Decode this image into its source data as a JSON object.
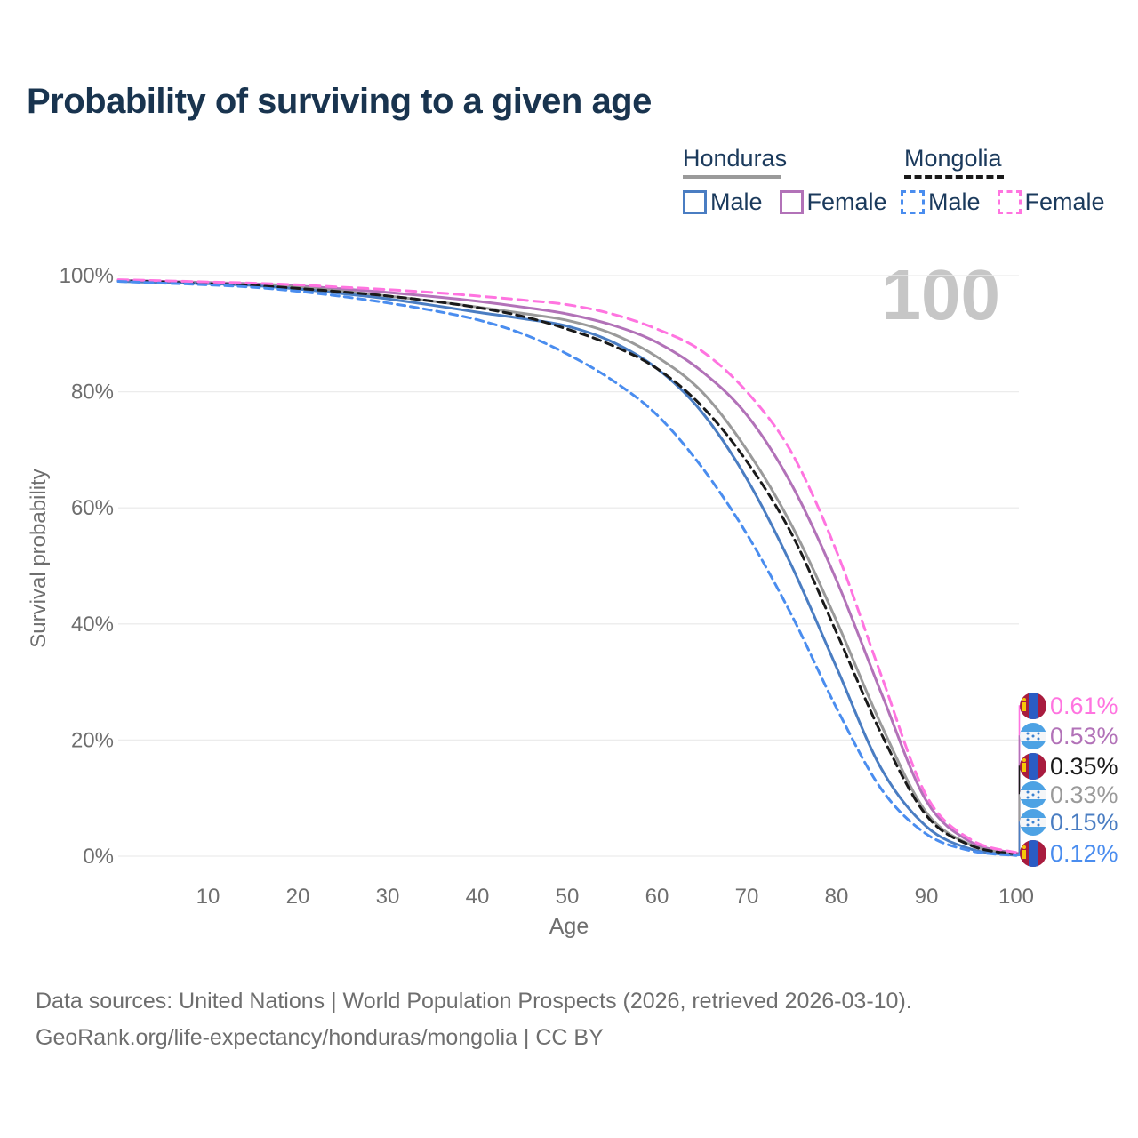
{
  "title": "Probability of surviving to a given age",
  "watermark_age": "100",
  "legend": {
    "groups": [
      {
        "country": "Honduras",
        "items": [
          {
            "label": "Male"
          },
          {
            "label": "Female"
          }
        ]
      },
      {
        "country": "Mongolia",
        "items": [
          {
            "label": "Male"
          },
          {
            "label": "Female"
          }
        ]
      }
    ]
  },
  "colors": {
    "honduras_male": "#4a7dc2",
    "honduras_female": "#b272b8",
    "honduras_both": "#9a9a9a",
    "mongolia_male": "#4a8def",
    "mongolia_female": "#ff74e0",
    "mongolia_both": "#1a1a1a",
    "title_text": "#19344f",
    "axis_text": "#6e6e6e",
    "grid": "#ececec",
    "watermark": "#c6c6c6",
    "flag_honduras_blue": "#4da2e4",
    "flag_mongolia_red": "#a81c3f",
    "flag_mongolia_blue": "#2a5cc4",
    "flag_mongolia_yellow": "#f7c808"
  },
  "chart_data": {
    "type": "line",
    "title": "Probability of surviving to a given age",
    "xlabel": "Age",
    "ylabel": "Survival probability",
    "xlim": [
      0,
      100
    ],
    "ylim": [
      0,
      100
    ],
    "grid": "horizontal",
    "legend_position": "top-right",
    "x_ticks": [
      10,
      20,
      30,
      40,
      50,
      60,
      70,
      80,
      90,
      100
    ],
    "y_ticks": [
      0,
      20,
      40,
      60,
      80,
      100
    ],
    "y_tick_labels": [
      "0%",
      "20%",
      "40%",
      "60%",
      "80%",
      "100%"
    ],
    "x": [
      0,
      5,
      10,
      15,
      20,
      25,
      30,
      35,
      40,
      45,
      50,
      55,
      60,
      65,
      70,
      75,
      80,
      85,
      90,
      95,
      100
    ],
    "series": [
      {
        "name": "Honduras Female",
        "country": "Honduras",
        "sex": "Female",
        "color": "#b272b8",
        "dash": false,
        "end_label": "0.53%",
        "end_value": 0.53,
        "flag": "honduras",
        "values": [
          99.2,
          99.0,
          98.8,
          98.6,
          98.2,
          97.7,
          97.1,
          96.4,
          95.6,
          94.6,
          93.4,
          91.5,
          88.5,
          83.5,
          76.0,
          64.0,
          47.5,
          28.0,
          9.5,
          2.4,
          0.53
        ]
      },
      {
        "name": "Honduras Both sexes",
        "country": "Honduras",
        "sex": "Both",
        "color": "#9a9a9a",
        "dash": false,
        "end_label": "0.33%",
        "end_value": 0.33,
        "flag": "honduras",
        "values": [
          99.1,
          98.9,
          98.7,
          98.4,
          98.0,
          97.3,
          96.5,
          95.6,
          94.6,
          93.5,
          92.3,
          90.0,
          86.0,
          80.0,
          70.0,
          57.0,
          40.5,
          22.5,
          7.5,
          1.9,
          0.33
        ]
      },
      {
        "name": "Honduras Male",
        "country": "Honduras",
        "sex": "Male",
        "color": "#4a7dc2",
        "dash": false,
        "end_label": "0.15%",
        "end_value": 0.15,
        "flag": "honduras",
        "values": [
          99.0,
          98.8,
          98.6,
          98.3,
          97.7,
          96.9,
          96.0,
          94.9,
          93.7,
          92.6,
          91.3,
          88.6,
          84.0,
          76.5,
          65.0,
          50.0,
          32.5,
          15.0,
          5.1,
          1.2,
          0.15
        ]
      },
      {
        "name": "Mongolia Both sexes",
        "country": "Mongolia",
        "sex": "Both",
        "color": "#1a1a1a",
        "dash": true,
        "end_label": "0.35%",
        "end_value": 0.35,
        "flag": "mongolia",
        "values": [
          99.1,
          98.9,
          98.6,
          98.3,
          97.8,
          97.2,
          96.5,
          95.6,
          94.5,
          93.0,
          90.8,
          88.0,
          84.0,
          77.5,
          68.0,
          55.5,
          38.5,
          21.0,
          7.0,
          1.8,
          0.35
        ]
      },
      {
        "name": "Mongolia Female",
        "country": "Mongolia",
        "sex": "Female",
        "color": "#ff74e0",
        "dash": true,
        "end_label": "0.61%",
        "end_value": 0.61,
        "flag": "mongolia",
        "values": [
          99.3,
          99.1,
          98.9,
          98.7,
          98.4,
          98.0,
          97.6,
          97.1,
          96.5,
          95.8,
          95.0,
          93.4,
          90.8,
          87.0,
          80.0,
          69.5,
          52.5,
          31.0,
          10.4,
          2.8,
          0.61
        ]
      },
      {
        "name": "Mongolia Male",
        "country": "Mongolia",
        "sex": "Male",
        "color": "#4a8def",
        "dash": true,
        "end_label": "0.12%",
        "end_value": 0.12,
        "flag": "mongolia",
        "values": [
          99.0,
          98.7,
          98.4,
          98.0,
          97.3,
          96.4,
          95.3,
          94.0,
          92.4,
          90.0,
          86.5,
          82.0,
          76.0,
          67.0,
          55.5,
          41.5,
          25.5,
          11.5,
          3.8,
          0.9,
          0.12
        ]
      }
    ]
  },
  "footer": {
    "line1": "Data sources: United Nations | World Population Prospects (2026, retrieved 2026-03-10).",
    "line2": "GeoRank.org/life-expectancy/honduras/mongolia | CC BY"
  }
}
